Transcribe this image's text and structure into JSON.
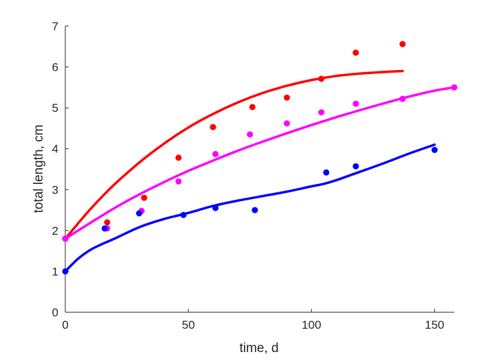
{
  "chart_data": {
    "type": "scatter",
    "title": "",
    "xlabel": "time, d",
    "ylabel": "total length, cm",
    "xlim": [
      0,
      158
    ],
    "ylim": [
      0,
      7
    ],
    "xticks": [
      0,
      50,
      100,
      150
    ],
    "yticks": [
      0,
      1,
      2,
      3,
      4,
      5,
      6,
      7
    ],
    "grid": false,
    "legend": "none",
    "series": [
      {
        "color": "#ff0000",
        "points": [
          [
            0,
            1.8
          ],
          [
            17,
            2.2
          ],
          [
            32,
            2.8
          ],
          [
            46,
            3.78
          ],
          [
            60,
            4.53
          ],
          [
            76,
            5.02
          ],
          [
            90,
            5.25
          ],
          [
            104,
            5.71
          ],
          [
            118,
            6.35
          ],
          [
            137,
            6.56
          ]
        ],
        "curve": [
          [
            0,
            1.8
          ],
          [
            5,
            2.16
          ],
          [
            10,
            2.51
          ],
          [
            15,
            2.83
          ],
          [
            20,
            3.13
          ],
          [
            30,
            3.66
          ],
          [
            40,
            4.12
          ],
          [
            50,
            4.52
          ],
          [
            60,
            4.85
          ],
          [
            70,
            5.13
          ],
          [
            80,
            5.36
          ],
          [
            90,
            5.54
          ],
          [
            100,
            5.68
          ],
          [
            110,
            5.78
          ],
          [
            120,
            5.84
          ],
          [
            130,
            5.88
          ],
          [
            137,
            5.9
          ]
        ]
      },
      {
        "color": "#ff00ff",
        "points": [
          [
            0,
            1.8
          ],
          [
            17,
            2.05
          ],
          [
            31,
            2.48
          ],
          [
            46,
            3.2
          ],
          [
            61,
            3.87
          ],
          [
            75,
            4.35
          ],
          [
            90,
            4.62
          ],
          [
            104,
            4.89
          ],
          [
            118,
            5.1
          ],
          [
            137,
            5.22
          ],
          [
            158,
            5.5
          ]
        ],
        "curve": [
          [
            0,
            1.8
          ],
          [
            10,
            2.18
          ],
          [
            20,
            2.55
          ],
          [
            30,
            2.88
          ],
          [
            40,
            3.18
          ],
          [
            50,
            3.46
          ],
          [
            60,
            3.71
          ],
          [
            70,
            3.95
          ],
          [
            80,
            4.17
          ],
          [
            90,
            4.38
          ],
          [
            100,
            4.58
          ],
          [
            110,
            4.77
          ],
          [
            120,
            4.95
          ],
          [
            130,
            5.12
          ],
          [
            140,
            5.28
          ],
          [
            150,
            5.42
          ],
          [
            158,
            5.5
          ]
        ]
      },
      {
        "color": "#0000ff",
        "points": [
          [
            0,
            1.0
          ],
          [
            16,
            2.05
          ],
          [
            30,
            2.42
          ],
          [
            48,
            2.38
          ],
          [
            61,
            2.55
          ],
          [
            77,
            2.5
          ],
          [
            106,
            3.42
          ],
          [
            118,
            3.57
          ],
          [
            150,
            3.97
          ]
        ],
        "curve": [
          [
            0,
            1.0
          ],
          [
            5,
            1.3
          ],
          [
            10,
            1.52
          ],
          [
            15,
            1.67
          ],
          [
            20,
            1.8
          ],
          [
            30,
            2.08
          ],
          [
            40,
            2.28
          ],
          [
            50,
            2.43
          ],
          [
            60,
            2.6
          ],
          [
            70,
            2.73
          ],
          [
            80,
            2.84
          ],
          [
            90,
            2.95
          ],
          [
            100,
            3.08
          ],
          [
            105,
            3.14
          ],
          [
            110,
            3.23
          ],
          [
            118,
            3.4
          ],
          [
            130,
            3.66
          ],
          [
            140,
            3.89
          ],
          [
            150,
            4.1
          ]
        ]
      }
    ]
  }
}
